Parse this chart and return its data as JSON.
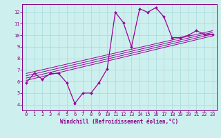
{
  "title": "",
  "xlabel": "Windchill (Refroidissement éolien,°C)",
  "ylabel": "",
  "bg_color": "#cdf0ee",
  "line_color": "#990099",
  "grid_color": "#aadddd",
  "axis_color": "#880088",
  "spine_color": "#880088",
  "xlim": [
    -0.5,
    23.5
  ],
  "ylim": [
    3.5,
    12.7
  ],
  "xticks": [
    0,
    1,
    2,
    3,
    4,
    5,
    6,
    7,
    8,
    9,
    10,
    11,
    12,
    13,
    14,
    15,
    16,
    17,
    18,
    19,
    20,
    21,
    22,
    23
  ],
  "yticks": [
    4,
    5,
    6,
    7,
    8,
    9,
    10,
    11,
    12
  ],
  "main_x": [
    0,
    1,
    2,
    3,
    4,
    5,
    6,
    7,
    8,
    9,
    10,
    11,
    12,
    13,
    14,
    15,
    16,
    17,
    18,
    19,
    20,
    21,
    22,
    23
  ],
  "main_y": [
    5.9,
    6.7,
    6.2,
    6.7,
    6.7,
    5.9,
    4.1,
    5.0,
    5.0,
    5.9,
    7.1,
    12.0,
    11.1,
    9.0,
    12.3,
    12.0,
    12.4,
    11.6,
    9.8,
    9.8,
    10.0,
    10.4,
    10.1,
    10.1
  ],
  "reg_lines": [
    {
      "x": [
        0,
        23
      ],
      "y": [
        6.1,
        9.95
      ]
    },
    {
      "x": [
        0,
        23
      ],
      "y": [
        6.3,
        10.1
      ]
    },
    {
      "x": [
        0,
        23
      ],
      "y": [
        6.5,
        10.25
      ]
    },
    {
      "x": [
        0,
        23
      ],
      "y": [
        6.7,
        10.4
      ]
    }
  ],
  "tick_fontsize": 5.0,
  "xlabel_fontsize": 5.5
}
